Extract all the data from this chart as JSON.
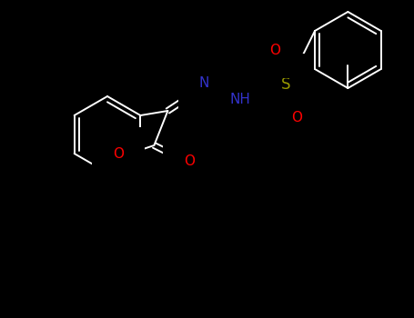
{
  "background_color": "#000000",
  "bond_color": "#ffffff",
  "atom_colors": {
    "N": "#3333cc",
    "O": "#ff0000",
    "S": "#999900",
    "C": "#ffffff",
    "H": "#ffffff"
  },
  "figsize": [
    4.55,
    3.5
  ],
  "dpi": 100,
  "lw": 1.4,
  "fs": 10
}
